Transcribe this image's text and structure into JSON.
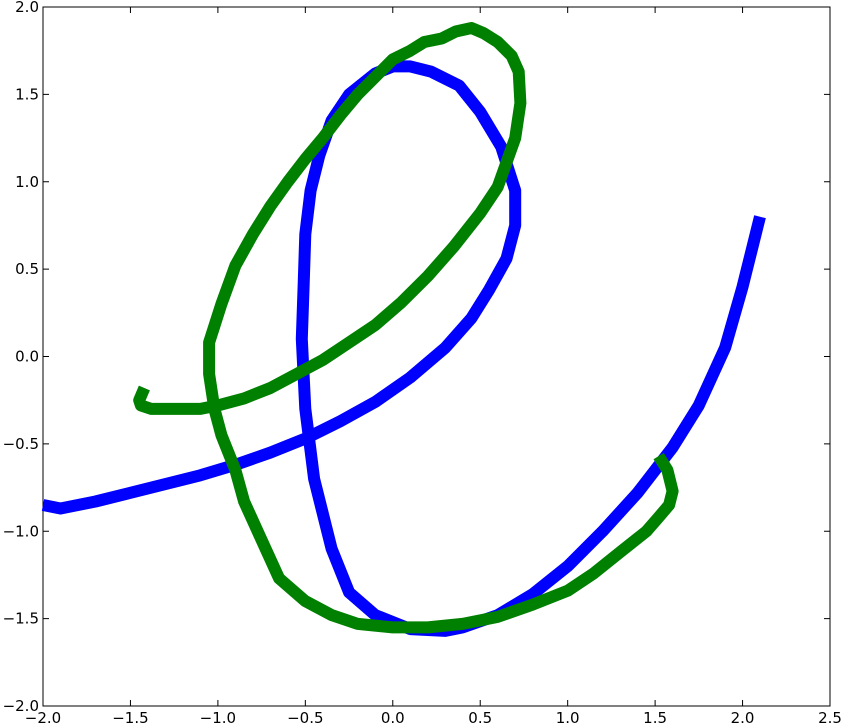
{
  "chart_data": {
    "type": "line",
    "title": "",
    "xlabel": "",
    "ylabel": "",
    "xlim": [
      -2.0,
      2.5
    ],
    "ylim": [
      -2.0,
      2.0
    ],
    "grid": false,
    "x_ticks": [
      -2.0,
      -1.5,
      -1.0,
      -0.5,
      0.0,
      0.5,
      1.0,
      1.5,
      2.0,
      2.5
    ],
    "x_tick_labels": [
      "−2.0",
      "−1.5",
      "−1.0",
      "−0.5",
      "0.0",
      "0.5",
      "1.0",
      "1.5",
      "2.0",
      "2.5"
    ],
    "y_ticks": [
      2.0,
      1.5,
      1.0,
      0.5,
      0.0,
      -0.5,
      -1.0,
      -1.5,
      -2.0
    ],
    "y_tick_labels": [
      "2.0",
      "1.5",
      "1.0",
      "0.5",
      "0.0",
      "−0.5",
      "−1.0",
      "−1.5",
      "−2.0"
    ],
    "series": [
      {
        "color": "#0000ff",
        "x": [
          -2.0,
          -1.9,
          -1.7,
          -1.5,
          -1.3,
          -1.1,
          -0.9,
          -0.7,
          -0.5,
          -0.3,
          -0.1,
          0.1,
          0.3,
          0.45,
          0.55,
          0.65,
          0.7,
          0.7,
          0.62,
          0.5,
          0.38,
          0.22,
          0.1,
          0.0,
          -0.1,
          -0.25,
          -0.35,
          -0.42,
          -0.47,
          -0.5,
          -0.51,
          -0.52,
          -0.5,
          -0.45,
          -0.35,
          -0.25,
          -0.1,
          0.1,
          0.3,
          0.4,
          0.6,
          0.8,
          1.0,
          1.2,
          1.4,
          1.6,
          1.75,
          1.9,
          2.0,
          2.1
        ],
        "y": [
          -0.85,
          -0.87,
          -0.83,
          -0.78,
          -0.73,
          -0.68,
          -0.62,
          -0.55,
          -0.47,
          -0.37,
          -0.26,
          -0.12,
          0.05,
          0.22,
          0.38,
          0.56,
          0.75,
          0.95,
          1.2,
          1.4,
          1.55,
          1.63,
          1.66,
          1.66,
          1.62,
          1.5,
          1.35,
          1.15,
          0.95,
          0.7,
          0.4,
          0.1,
          -0.3,
          -0.7,
          -1.1,
          -1.35,
          -1.48,
          -1.56,
          -1.57,
          -1.55,
          -1.48,
          -1.36,
          -1.2,
          -1.0,
          -0.78,
          -0.52,
          -0.28,
          0.05,
          0.4,
          0.8
        ]
      },
      {
        "color": "#008000",
        "x": [
          -1.42,
          -1.45,
          -1.44,
          -1.38,
          -1.25,
          -1.1,
          -1.0,
          -0.85,
          -0.7,
          -0.55,
          -0.4,
          -0.25,
          -0.1,
          0.05,
          0.2,
          0.35,
          0.5,
          0.6,
          0.7,
          0.73,
          0.72,
          0.68,
          0.6,
          0.52,
          0.45,
          0.36,
          0.28,
          0.18,
          0.1,
          0.0,
          -0.1,
          -0.2,
          -0.3,
          -0.4,
          -0.5,
          -0.6,
          -0.7,
          -0.8,
          -0.9,
          -0.98,
          -1.05,
          -1.05,
          -1.02,
          -0.98,
          -0.9,
          -0.85,
          -0.75,
          -0.65,
          -0.5,
          -0.35,
          -0.2,
          0.0,
          0.2,
          0.4,
          0.6,
          0.8,
          1.0,
          1.15,
          1.3,
          1.45,
          1.52,
          1.58,
          1.6,
          1.57,
          1.52
        ],
        "y": [
          -0.18,
          -0.25,
          -0.28,
          -0.3,
          -0.3,
          -0.3,
          -0.28,
          -0.24,
          -0.18,
          -0.1,
          -0.02,
          0.08,
          0.18,
          0.31,
          0.46,
          0.63,
          0.82,
          0.97,
          1.25,
          1.45,
          1.63,
          1.72,
          1.8,
          1.85,
          1.88,
          1.86,
          1.82,
          1.8,
          1.75,
          1.7,
          1.6,
          1.5,
          1.38,
          1.25,
          1.13,
          1.0,
          0.86,
          0.7,
          0.52,
          0.3,
          0.08,
          -0.1,
          -0.3,
          -0.45,
          -0.65,
          -0.83,
          -1.05,
          -1.27,
          -1.4,
          -1.48,
          -1.53,
          -1.55,
          -1.55,
          -1.53,
          -1.49,
          -1.42,
          -1.34,
          -1.24,
          -1.12,
          -1.0,
          -0.92,
          -0.85,
          -0.77,
          -0.65,
          -0.57
        ]
      }
    ]
  }
}
